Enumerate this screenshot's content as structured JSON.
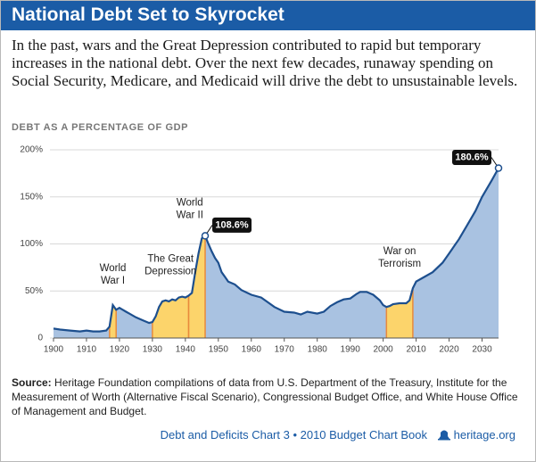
{
  "header": {
    "title": "National Debt Set to Skyrocket",
    "subtitle": "In the past, wars and the Great Depression contributed to rapid but temporary increases in the national debt. Over the next few decades, runaway spending on Social Security, Medicare, and Medicaid will drive the debt to unsustainable levels."
  },
  "chart_data": {
    "type": "area",
    "ylabel": "DEBT AS A PERCENTAGE OF GDP",
    "x": [
      1900,
      1902,
      1905,
      1908,
      1910,
      1912,
      1914,
      1916,
      1917,
      1918,
      1919,
      1920,
      1921,
      1922,
      1923,
      1925,
      1927,
      1929,
      1930,
      1931,
      1932,
      1933,
      1934,
      1935,
      1936,
      1937,
      1938,
      1939,
      1940,
      1941,
      1942,
      1943,
      1944,
      1945,
      1946,
      1947,
      1948,
      1949,
      1950,
      1951,
      1952,
      1953,
      1955,
      1957,
      1960,
      1963,
      1965,
      1967,
      1970,
      1973,
      1975,
      1977,
      1980,
      1982,
      1984,
      1986,
      1988,
      1990,
      1992,
      1993,
      1995,
      1997,
      1999,
      2000,
      2001,
      2002,
      2003,
      2005,
      2007,
      2008,
      2009,
      2010,
      2012,
      2015,
      2018,
      2020,
      2023,
      2025,
      2028,
      2030,
      2033,
      2035
    ],
    "values": [
      10,
      9,
      8,
      7,
      8,
      7,
      7,
      8,
      12,
      35,
      30,
      32,
      30,
      28,
      26,
      22,
      19,
      16,
      17,
      23,
      33,
      39,
      40,
      39,
      41,
      40,
      43,
      44,
      43,
      45,
      48,
      70,
      90,
      106,
      108.6,
      100,
      92,
      85,
      80,
      70,
      65,
      60,
      57,
      51,
      46,
      43,
      38,
      33,
      28,
      27,
      25,
      28,
      26,
      28,
      34,
      38,
      41,
      42,
      47,
      49,
      49,
      46,
      40,
      35,
      33,
      34,
      36,
      37,
      37,
      40,
      53,
      60,
      64,
      70,
      80,
      90,
      105,
      117,
      135,
      150,
      168,
      180.6
    ],
    "line_color": "#1d4f8e",
    "area_color": "#a9c2e1",
    "highlight_color": "#fcd46b",
    "highlight_edge_color": "#e88a3c",
    "xlim": [
      1900,
      2035
    ],
    "xticks": [
      1900,
      1910,
      1920,
      1930,
      1940,
      1950,
      1960,
      1970,
      1980,
      1990,
      2000,
      2010,
      2020,
      2030
    ],
    "ylim": [
      0,
      200
    ],
    "yticks": [
      0,
      {
        "value": 50,
        "label": "50%"
      },
      {
        "value": 100,
        "label": "100%"
      },
      {
        "value": 150,
        "label": "150%"
      },
      {
        "value": 200,
        "label": "200%"
      }
    ],
    "grid": true,
    "periods": [
      {
        "lines": [
          "World",
          "War I"
        ],
        "start": 1917,
        "end": 1919
      },
      {
        "lines": [
          "The Great",
          "Depression"
        ],
        "start": 1930,
        "end": 1941
      },
      {
        "lines": [
          "World",
          "War II"
        ],
        "start": 1941,
        "end": 1946
      },
      {
        "lines": [
          "War on",
          "Terrorism"
        ],
        "start": 2001,
        "end": 2009
      }
    ],
    "callouts": [
      {
        "x": 1946,
        "value": 108.6,
        "label": "108.6%"
      },
      {
        "x": 2035,
        "value": 180.6,
        "label": "180.6%"
      }
    ]
  },
  "source": {
    "label": "Source:",
    "text": "Heritage Foundation compilations of data from U.S. Department of the Treasury, Institute for the Measurement of Worth (Alternative Fiscal Scenario), Congressional Budget Office, and White House Office of Management and Budget."
  },
  "footer": {
    "text": "Debt and Deficits Chart 3 • 2010 Budget Chart Book",
    "site": "heritage.org"
  }
}
